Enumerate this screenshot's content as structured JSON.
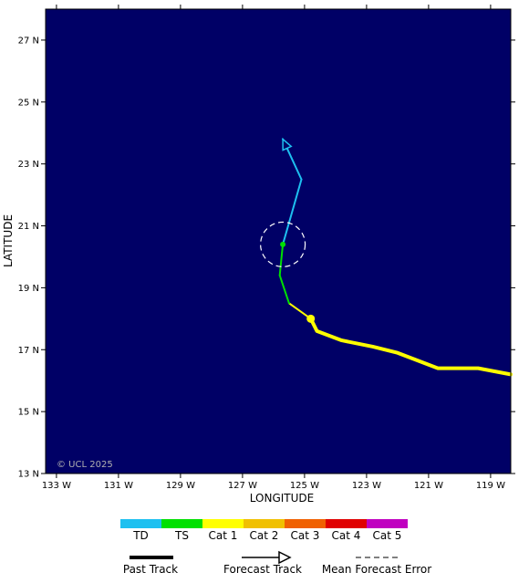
{
  "map": {
    "lat_range": [
      13,
      28
    ],
    "lon_range": [
      133.35,
      118.35
    ],
    "lat_ticks": [
      "27 N",
      "25 N",
      "23 N",
      "21 N",
      "19 N",
      "17 N",
      "15 N",
      "13 N"
    ],
    "lon_ticks": [
      "133 W",
      "131 W",
      "129 W",
      "127 W",
      "125 W",
      "123 W",
      "121 W",
      "119 W"
    ],
    "xlabel": "LONGITUDE",
    "ylabel": "LATITUDE",
    "copyright": "© UCL 2025",
    "ocean_color": "#000066"
  },
  "colors": {
    "TD": "#1ec0f0",
    "TS": "#00e000",
    "Cat 1": "#ffff00",
    "Cat 2": "#f0c000",
    "Cat 3": "#f06000",
    "Cat 4": "#e00000",
    "Cat 5": "#c000c0"
  },
  "past_track": [
    {
      "lon": 118.35,
      "lat": 16.2
    },
    {
      "lon": 119.4,
      "lat": 16.4
    },
    {
      "lon": 120.7,
      "lat": 16.4
    },
    {
      "lon": 122.0,
      "lat": 16.9
    },
    {
      "lon": 122.8,
      "lat": 17.1
    },
    {
      "lon": 123.8,
      "lat": 17.3
    },
    {
      "lon": 124.6,
      "lat": 17.6
    },
    {
      "lon": 124.8,
      "lat": 18.0
    }
  ],
  "past_category": "Cat 1",
  "current_position": {
    "lon": 124.8,
    "lat": 18.0,
    "category": "Cat 1"
  },
  "forecast_track": [
    {
      "lon": 124.8,
      "lat": 18.0,
      "category": "Cat 1"
    },
    {
      "lon": 125.5,
      "lat": 18.5,
      "category": "Cat 1"
    },
    {
      "lon": 125.8,
      "lat": 19.4,
      "category": "TS"
    },
    {
      "lon": 125.7,
      "lat": 20.4,
      "category": "TS"
    },
    {
      "lon": 125.1,
      "lat": 22.5,
      "category": "TD"
    },
    {
      "lon": 125.7,
      "lat": 23.8,
      "category": "TD"
    }
  ],
  "forecast_point": {
    "lon": 125.7,
    "lat": 20.4,
    "category": "TS"
  },
  "error_circle": {
    "lon": 125.7,
    "lat": 20.4,
    "radius_deg": 0.72
  },
  "legend": {
    "categories": [
      "TD",
      "TS",
      "Cat 1",
      "Cat 2",
      "Cat 3",
      "Cat 4",
      "Cat 5"
    ],
    "past_track_label": "Past Track",
    "forecast_track_label": "Forecast Track",
    "error_label": "Mean Forecast Error"
  }
}
